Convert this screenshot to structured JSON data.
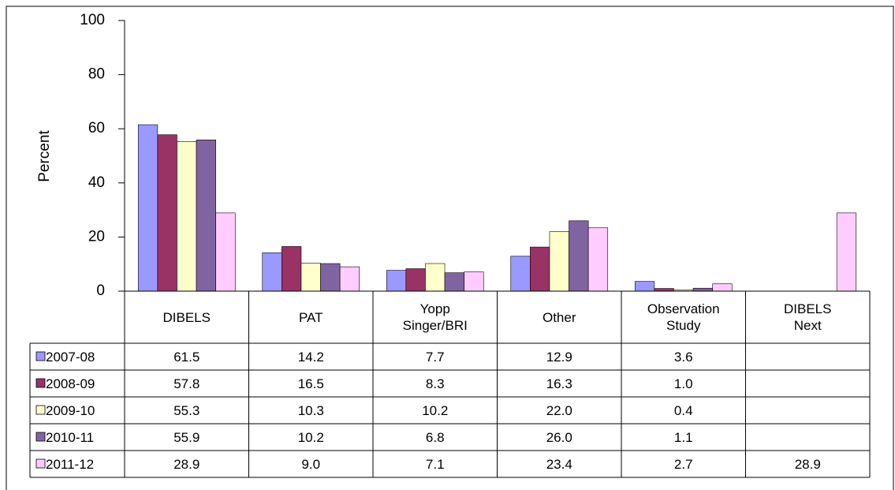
{
  "chart_data": {
    "type": "bar",
    "y_label": "Percent",
    "categories": [
      "DIBELS",
      "PAT",
      "Yopp\nSinger/BRI",
      "Other",
      "Observation\nStudy",
      "DIBELS\nNext"
    ],
    "ylim": [
      0,
      100
    ],
    "yticks": [
      0,
      20,
      40,
      60,
      80,
      100
    ],
    "series": [
      {
        "name": "2007-08",
        "color": "#9999ff",
        "values": [
          61.5,
          14.2,
          7.7,
          12.9,
          3.6,
          null
        ],
        "value_labels": [
          "61.5",
          "14.2",
          "7.7",
          "12.9",
          "3.6",
          null
        ]
      },
      {
        "name": "2008-09",
        "color": "#993366",
        "values": [
          57.8,
          16.5,
          8.3,
          16.3,
          1.0,
          null
        ],
        "value_labels": [
          "57.8",
          "16.5",
          "8.3",
          "16.3",
          "1.0",
          null
        ]
      },
      {
        "name": "2009-10",
        "color": "#ffffcc",
        "values": [
          55.3,
          10.3,
          10.2,
          22.0,
          0.4,
          null
        ],
        "value_labels": [
          "55.3",
          "10.3",
          "10.2",
          "22.0",
          "0.4",
          null
        ]
      },
      {
        "name": "2010-11",
        "color": "#8064a2",
        "values": [
          55.9,
          10.2,
          6.8,
          26.0,
          1.1,
          null
        ],
        "value_labels": [
          "55.9",
          "10.2",
          "6.8",
          "26.0",
          "1.1",
          null
        ]
      },
      {
        "name": "2011-12",
        "color": "#ffccff",
        "values": [
          28.9,
          9.0,
          7.1,
          23.4,
          2.7,
          28.9
        ],
        "value_labels": [
          "28.9",
          "9.0",
          "7.1",
          "23.4",
          "2.7",
          "28.9"
        ]
      }
    ]
  }
}
